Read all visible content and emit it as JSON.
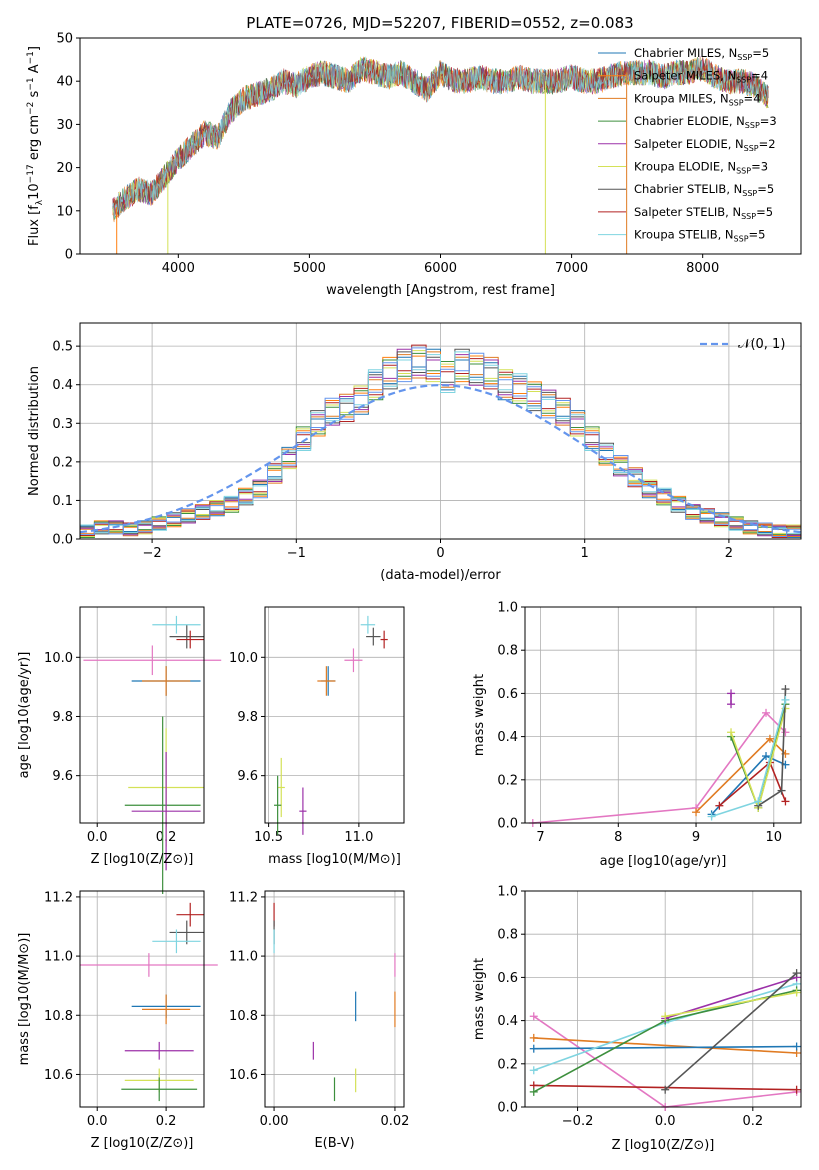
{
  "title": "PLATE=0726, MJD=52207, FIBERID=0552, z=0.083",
  "colors": {
    "chabrier_miles": "#1f77b4",
    "salpeter_miles": "#ff7f0e",
    "kroupa_miles": "#e07b22",
    "chabrier_elodie": "#3d8f3d",
    "salpeter_elodie": "#9b30a8",
    "kroupa_elodie": "#d4e157",
    "chabrier_stelib": "#555555",
    "salpeter_stelib": "#b22222",
    "kroupa_stelib": "#7fd4e0",
    "pink": "#e377c2",
    "normal": "#6495ed"
  },
  "chart_data": [
    {
      "type": "line",
      "panel": "spectrum",
      "title": "PLATE=0726, MJD=52207, FIBERID=0552, z=0.083",
      "xlabel": "wavelength [Angstrom, rest frame]",
      "ylabel_parts": [
        "Flux [f",
        "λ",
        "10",
        "−17",
        " erg cm",
        "−2",
        " s",
        "−1",
        " A",
        "−1",
        "]"
      ],
      "xlim": [
        3250,
        8750
      ],
      "ylim": [
        0,
        50
      ],
      "xticks": [
        "4000",
        "5000",
        "6000",
        "7000",
        "8000"
      ],
      "yticks": [
        "0",
        "10",
        "20",
        "30",
        "40",
        "50"
      ],
      "legend_position": "top-right",
      "series": [
        {
          "name": "Chabrier MILES",
          "n_ssp": "5",
          "color_key": "chabrier_miles"
        },
        {
          "name": "Salpeter MILES",
          "n_ssp": "4",
          "color_key": "salpeter_miles"
        },
        {
          "name": "Kroupa MILES",
          "n_ssp": "4",
          "color_key": "kroupa_miles"
        },
        {
          "name": "Chabrier ELODIE",
          "n_ssp": "3",
          "color_key": "chabrier_elodie"
        },
        {
          "name": "Salpeter ELODIE",
          "n_ssp": "2",
          "color_key": "salpeter_elodie"
        },
        {
          "name": "Kroupa ELODIE",
          "n_ssp": "3",
          "color_key": "kroupa_elodie"
        },
        {
          "name": "Chabrier STELIB",
          "n_ssp": "5",
          "color_key": "chabrier_stelib"
        },
        {
          "name": "Salpeter STELIB",
          "n_ssp": "5",
          "color_key": "salpeter_stelib"
        },
        {
          "name": "Kroupa STELIB",
          "n_ssp": "5",
          "color_key": "kroupa_stelib"
        }
      ],
      "envelope": {
        "x": [
          3500,
          3600,
          3700,
          3800,
          3900,
          4000,
          4100,
          4200,
          4300,
          4400,
          4500,
          4600,
          4700,
          4800,
          4900,
          5000,
          5100,
          5200,
          5300,
          5400,
          5500,
          5600,
          5700,
          5800,
          5900,
          6000,
          6100,
          6200,
          6300,
          6400,
          6500,
          6600,
          6700,
          6800,
          6900,
          7000,
          7100,
          7200,
          7300,
          7400,
          7500,
          7600,
          7700,
          7800,
          7900,
          8000,
          8100,
          8200,
          8300,
          8400,
          8500
        ],
        "y": [
          10,
          13,
          15,
          14,
          18,
          22,
          25,
          28,
          27,
          33,
          36,
          37,
          38,
          40,
          39,
          41,
          42,
          41,
          40,
          43,
          42,
          41,
          42,
          40,
          38,
          42,
          40,
          40,
          41,
          40,
          40,
          41,
          40,
          40,
          40,
          41,
          40,
          40,
          41,
          42,
          42,
          42,
          41,
          42,
          42,
          43,
          41,
          40,
          40,
          39,
          36
        ]
      }
    },
    {
      "type": "step",
      "panel": "residuals",
      "xlabel": "(data-model)/error",
      "ylabel": "Normed distribution",
      "xlim": [
        -2.5,
        2.5
      ],
      "ylim": [
        0,
        0.56
      ],
      "xticks": [
        "−2",
        "−1",
        "0",
        "1",
        "2"
      ],
      "yticks": [
        "0.0",
        "0.1",
        "0.2",
        "0.3",
        "0.4",
        "0.5"
      ],
      "legend": "𝒩(0, 1)",
      "legend_position": "top-right",
      "bins_x": [
        -2.5,
        -2.4,
        -2.3,
        -2.2,
        -2.1,
        -2.0,
        -1.9,
        -1.8,
        -1.7,
        -1.6,
        -1.5,
        -1.4,
        -1.3,
        -1.2,
        -1.1,
        -1.0,
        -0.9,
        -0.8,
        -0.7,
        -0.6,
        -0.5,
        -0.4,
        -0.3,
        -0.2,
        -0.1,
        0.0,
        0.1,
        0.2,
        0.3,
        0.4,
        0.5,
        0.6,
        0.7,
        0.8,
        0.9,
        1.0,
        1.1,
        1.2,
        1.3,
        1.4,
        1.5,
        1.6,
        1.7,
        1.8,
        1.9,
        2.0,
        2.1,
        2.2,
        2.3,
        2.4,
        2.5
      ],
      "histogram_mean": [
        0.02,
        0.03,
        0.03,
        0.025,
        0.03,
        0.04,
        0.05,
        0.06,
        0.07,
        0.08,
        0.09,
        0.11,
        0.13,
        0.17,
        0.21,
        0.26,
        0.3,
        0.33,
        0.34,
        0.36,
        0.4,
        0.43,
        0.45,
        0.46,
        0.45,
        0.42,
        0.45,
        0.44,
        0.43,
        0.4,
        0.39,
        0.37,
        0.35,
        0.33,
        0.3,
        0.26,
        0.22,
        0.19,
        0.16,
        0.13,
        0.11,
        0.09,
        0.07,
        0.06,
        0.05,
        0.04,
        0.03,
        0.025,
        0.02,
        0.02
      ]
    },
    {
      "type": "scatter",
      "panel": "age-vs-Z",
      "xlabel": "Z [log10(Z/Z⊙)]",
      "ylabel": "age  [log10(age/yr)]",
      "xlim": [
        -0.05,
        0.31
      ],
      "ylim": [
        9.44,
        10.17
      ],
      "xticks": [
        "0.0",
        "0.2"
      ],
      "yticks": [
        "9.6",
        "9.8",
        "10.0"
      ],
      "points": [
        {
          "x": 0.26,
          "y": 10.07,
          "xerr": 0.05,
          "yerr": 0.04,
          "color_key": "chabrier_stelib"
        },
        {
          "x": 0.27,
          "y": 10.06,
          "xerr": 0.04,
          "yerr": 0.03,
          "color_key": "salpeter_stelib"
        },
        {
          "x": 0.23,
          "y": 10.11,
          "xerr": 0.07,
          "yerr": 0.03,
          "color_key": "kroupa_stelib"
        },
        {
          "x": 0.16,
          "y": 9.99,
          "xerr": 0.2,
          "yerr": 0.05,
          "color_key": "pink"
        },
        {
          "x": 0.2,
          "y": 9.92,
          "xerr": 0.1,
          "yerr": 0.05,
          "color_key": "chabrier_miles"
        },
        {
          "x": 0.2,
          "y": 9.92,
          "xerr": 0.07,
          "yerr": 0.05,
          "color_key": "kroupa_miles"
        },
        {
          "x": 0.2,
          "y": 9.56,
          "xerr": 0.11,
          "yerr": 0.2,
          "color_key": "kroupa_elodie"
        },
        {
          "x": 0.19,
          "y": 9.5,
          "xerr": 0.11,
          "yerr": 0.3,
          "color_key": "chabrier_elodie"
        },
        {
          "x": 0.2,
          "y": 9.48,
          "xerr": 0.1,
          "yerr": 0.2,
          "color_key": "salpeter_elodie"
        }
      ]
    },
    {
      "type": "scatter",
      "panel": "age-vs-mass",
      "xlabel": "mass [log10(M/M⊙)]",
      "ylabel": "",
      "xlim": [
        10.48,
        11.25
      ],
      "ylim": [
        9.44,
        10.17
      ],
      "xticks": [
        "10.5",
        "11.0"
      ],
      "yticks": [
        "9.6",
        "9.8",
        "10.0"
      ],
      "points": [
        {
          "x": 11.08,
          "y": 10.07,
          "xerr": 0.04,
          "yerr": 0.03,
          "color_key": "chabrier_stelib"
        },
        {
          "x": 11.14,
          "y": 10.06,
          "xerr": 0.02,
          "yerr": 0.03,
          "color_key": "salpeter_stelib"
        },
        {
          "x": 11.05,
          "y": 10.11,
          "xerr": 0.04,
          "yerr": 0.03,
          "color_key": "kroupa_stelib"
        },
        {
          "x": 10.97,
          "y": 9.99,
          "xerr": 0.05,
          "yerr": 0.04,
          "color_key": "pink"
        },
        {
          "x": 10.83,
          "y": 9.92,
          "xerr": 0.04,
          "yerr": 0.05,
          "color_key": "chabrier_miles"
        },
        {
          "x": 10.82,
          "y": 9.92,
          "xerr": 0.05,
          "yerr": 0.05,
          "color_key": "kroupa_miles"
        },
        {
          "x": 10.57,
          "y": 9.56,
          "xerr": 0.02,
          "yerr": 0.1,
          "color_key": "kroupa_elodie"
        },
        {
          "x": 10.55,
          "y": 9.5,
          "xerr": 0.02,
          "yerr": 0.1,
          "color_key": "chabrier_elodie"
        },
        {
          "x": 10.69,
          "y": 9.48,
          "xerr": 0.02,
          "yerr": 0.08,
          "color_key": "salpeter_elodie"
        }
      ]
    },
    {
      "type": "line",
      "panel": "mass-weight-vs-age",
      "xlabel": "age  [log10(age/yr)]",
      "ylabel": "mass weight",
      "xlim": [
        6.8,
        10.35
      ],
      "ylim": [
        0,
        1
      ],
      "xticks": [
        "7",
        "8",
        "9",
        "10"
      ],
      "yticks": [
        "0.0",
        "0.2",
        "0.4",
        "0.6",
        "0.8",
        "1.0"
      ],
      "series": [
        {
          "color_key": "pink",
          "x": [
            6.9,
            9.0,
            9.9,
            10.15
          ],
          "y": [
            0.0,
            0.07,
            0.51,
            0.42
          ]
        },
        {
          "color_key": "kroupa_miles",
          "x": [
            9.0,
            9.95,
            10.15
          ],
          "y": [
            0.05,
            0.39,
            0.32
          ]
        },
        {
          "color_key": "chabrier_miles",
          "x": [
            9.2,
            9.9,
            10.15
          ],
          "y": [
            0.04,
            0.31,
            0.27
          ]
        },
        {
          "color_key": "salpeter_stelib",
          "x": [
            9.3,
            9.95,
            10.15
          ],
          "y": [
            0.08,
            0.28,
            0.1
          ]
        },
        {
          "color_key": "chabrier_elodie",
          "x": [
            9.45,
            9.8,
            10.15
          ],
          "y": [
            0.4,
            0.07,
            0.55
          ]
        },
        {
          "color_key": "kroupa_elodie",
          "x": [
            9.45,
            9.8,
            10.15
          ],
          "y": [
            0.42,
            0.07,
            0.53
          ]
        },
        {
          "color_key": "salpeter_elodie",
          "x": [
            9.45,
            9.45
          ],
          "y": [
            0.55,
            0.6
          ]
        },
        {
          "color_key": "chabrier_stelib",
          "x": [
            9.8,
            10.1,
            10.15
          ],
          "y": [
            0.08,
            0.15,
            0.62
          ]
        },
        {
          "color_key": "kroupa_stelib",
          "x": [
            9.2,
            9.8,
            10.15
          ],
          "y": [
            0.03,
            0.1,
            0.57
          ]
        }
      ]
    },
    {
      "type": "scatter",
      "panel": "mass-vs-Z",
      "xlabel": "Z [log10(Z/Z⊙)]",
      "ylabel": "mass [log10(M/M⊙)]",
      "xlim": [
        -0.05,
        0.31
      ],
      "ylim": [
        10.49,
        11.22
      ],
      "xticks": [
        "0.0",
        "0.2"
      ],
      "yticks": [
        "10.6",
        "10.8",
        "11.0",
        "11.2"
      ],
      "points": [
        {
          "x": 0.27,
          "y": 11.14,
          "xerr": 0.04,
          "yerr": 0.04,
          "color_key": "salpeter_stelib"
        },
        {
          "x": 0.26,
          "y": 11.08,
          "xerr": 0.05,
          "yerr": 0.04,
          "color_key": "chabrier_stelib"
        },
        {
          "x": 0.23,
          "y": 11.05,
          "xerr": 0.07,
          "yerr": 0.04,
          "color_key": "kroupa_stelib"
        },
        {
          "x": 0.15,
          "y": 10.97,
          "xerr": 0.2,
          "yerr": 0.04,
          "color_key": "pink"
        },
        {
          "x": 0.2,
          "y": 10.83,
          "xerr": 0.1,
          "yerr": 0.04,
          "color_key": "chabrier_miles"
        },
        {
          "x": 0.2,
          "y": 10.82,
          "xerr": 0.07,
          "yerr": 0.05,
          "color_key": "kroupa_miles"
        },
        {
          "x": 0.18,
          "y": 10.68,
          "xerr": 0.1,
          "yerr": 0.03,
          "color_key": "salpeter_elodie"
        },
        {
          "x": 0.18,
          "y": 10.58,
          "xerr": 0.1,
          "yerr": 0.04,
          "color_key": "kroupa_elodie"
        },
        {
          "x": 0.18,
          "y": 10.55,
          "xerr": 0.11,
          "yerr": 0.04,
          "color_key": "chabrier_elodie"
        }
      ]
    },
    {
      "type": "scatter",
      "panel": "mass-vs-ebv",
      "xlabel": "E(B-V)",
      "ylabel": "",
      "xlim": [
        -0.0015,
        0.0215
      ],
      "ylim": [
        10.49,
        11.22
      ],
      "xticks": [
        "0.00",
        "0.02"
      ],
      "yticks": [
        "10.6",
        "10.8",
        "11.0",
        "11.2"
      ],
      "points": [
        {
          "x": 0.0,
          "y": 11.14,
          "xerr": 0,
          "yerr": 0.04,
          "color_key": "salpeter_stelib"
        },
        {
          "x": 0.0,
          "y": 11.08,
          "xerr": 0,
          "yerr": 0.04,
          "color_key": "chabrier_stelib"
        },
        {
          "x": 0.0,
          "y": 11.05,
          "xerr": 0,
          "yerr": 0.04,
          "color_key": "kroupa_stelib"
        },
        {
          "x": 0.02,
          "y": 10.97,
          "xerr": 0,
          "yerr": 0.04,
          "color_key": "pink"
        },
        {
          "x": 0.02,
          "y": 10.82,
          "xerr": 0,
          "yerr": 0.06,
          "color_key": "kroupa_miles"
        },
        {
          "x": 0.0135,
          "y": 10.83,
          "xerr": 0,
          "yerr": 0.05,
          "color_key": "chabrier_miles"
        },
        {
          "x": 0.0065,
          "y": 10.68,
          "xerr": 0,
          "yerr": 0.03,
          "color_key": "salpeter_elodie"
        },
        {
          "x": 0.0135,
          "y": 10.58,
          "xerr": 0,
          "yerr": 0.04,
          "color_key": "kroupa_elodie"
        },
        {
          "x": 0.01,
          "y": 10.55,
          "xerr": 0,
          "yerr": 0.04,
          "color_key": "chabrier_elodie"
        }
      ]
    },
    {
      "type": "line",
      "panel": "mass-weight-vs-Z",
      "xlabel": "Z [log10(Z/Z⊙)]",
      "ylabel": "mass weight",
      "xlim": [
        -0.32,
        0.31
      ],
      "ylim": [
        0,
        1
      ],
      "xticks": [
        "−0.2",
        "0.0",
        "0.2"
      ],
      "yticks": [
        "0.0",
        "0.2",
        "0.4",
        "0.6",
        "0.8",
        "1.0"
      ],
      "series": [
        {
          "color_key": "pink",
          "x": [
            -0.3,
            0.0,
            0.3
          ],
          "y": [
            0.42,
            0.0,
            0.07
          ]
        },
        {
          "color_key": "kroupa_miles",
          "x": [
            -0.3,
            0.3
          ],
          "y": [
            0.32,
            0.25
          ]
        },
        {
          "color_key": "chabrier_miles",
          "x": [
            -0.3,
            0.3
          ],
          "y": [
            0.27,
            0.28
          ]
        },
        {
          "color_key": "kroupa_stelib",
          "x": [
            -0.3,
            0.0,
            0.3
          ],
          "y": [
            0.17,
            0.39,
            0.57
          ]
        },
        {
          "color_key": "salpeter_stelib",
          "x": [
            -0.3,
            0.3
          ],
          "y": [
            0.1,
            0.08
          ]
        },
        {
          "color_key": "chabrier_elodie",
          "x": [
            -0.3,
            0.0,
            0.3
          ],
          "y": [
            0.07,
            0.4,
            0.54
          ]
        },
        {
          "color_key": "salpeter_elodie",
          "x": [
            0.0,
            0.3
          ],
          "y": [
            0.41,
            0.6
          ]
        },
        {
          "color_key": "kroupa_elodie",
          "x": [
            0.0,
            0.3
          ],
          "y": [
            0.42,
            0.53
          ]
        },
        {
          "color_key": "chabrier_stelib",
          "x": [
            0.0,
            0.3
          ],
          "y": [
            0.08,
            0.62
          ]
        }
      ]
    }
  ]
}
